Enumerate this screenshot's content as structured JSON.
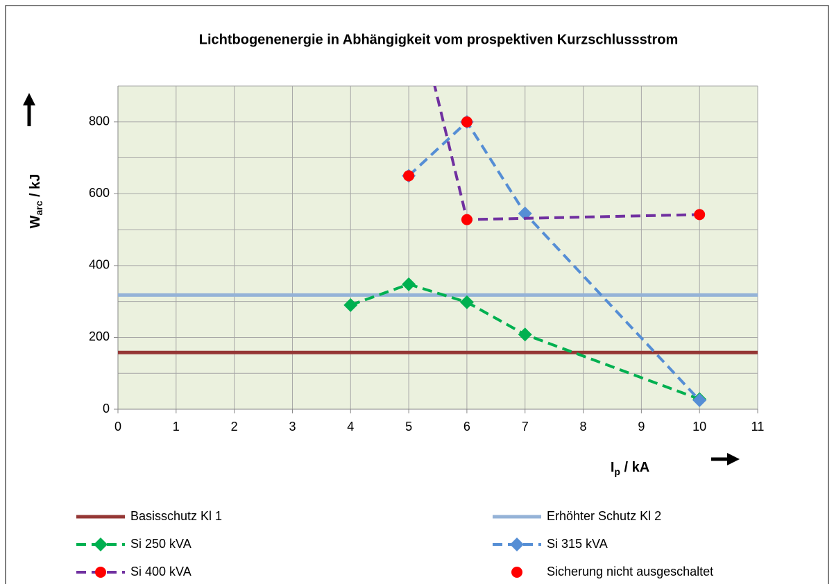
{
  "chart_data": {
    "type": "line",
    "title": "Lichtbogenenergie in Abhängigkeit vom prospektiven Kurzschlussstrom",
    "ylabel": {
      "main": "W",
      "sub": "arc",
      "unit": " / kJ"
    },
    "xlabel": {
      "main": "I",
      "sub": "p",
      "unit": " / kA"
    },
    "xlim": [
      0,
      11
    ],
    "xticks": [
      0,
      1,
      2,
      3,
      4,
      5,
      6,
      7,
      8,
      9,
      10,
      11
    ],
    "ylim": [
      0,
      900
    ],
    "yticks": [
      0,
      200,
      400,
      600,
      800
    ],
    "ygrid": [
      0,
      100,
      200,
      300,
      400,
      500,
      600,
      700,
      800,
      900
    ],
    "grid": true,
    "plot_background": "#ebf1de",
    "series": [
      {
        "name": "Basisschutz Kl 1",
        "color": "#953735",
        "dash": false,
        "marker": null,
        "x": [
          0,
          11
        ],
        "values": [
          158,
          158
        ]
      },
      {
        "name": "Erhöhter Schutz Kl 2",
        "color": "#95b3d7",
        "dash": false,
        "marker": null,
        "x": [
          0,
          11
        ],
        "values": [
          318,
          318
        ]
      },
      {
        "name": "Si 250 kVA",
        "color": "#00b050",
        "dash": true,
        "marker": "diamond",
        "marker_color": "#00b050",
        "x": [
          4,
          5,
          6,
          7,
          10
        ],
        "values": [
          290,
          348,
          298,
          208,
          28
        ]
      },
      {
        "name": "Si 315 kVA",
        "color": "#558ed5",
        "dash": true,
        "marker": "diamond",
        "marker_color": "#558ed5",
        "x": [
          5,
          6,
          7,
          10
        ],
        "values": [
          650,
          800,
          545,
          25
        ]
      },
      {
        "name": "Si 400 kVA",
        "color": "#7030a0",
        "dash": true,
        "marker": "circle",
        "marker_color": "#ff0000",
        "x": [
          5,
          6,
          10
        ],
        "values": [
          1200,
          528,
          542
        ]
      },
      {
        "name": "Sicherung nicht ausgeschaltet",
        "color": "#ff0000",
        "line": false,
        "marker": "circle",
        "marker_color": "#ff0000",
        "x": [
          5,
          6
        ],
        "values": [
          650,
          800
        ]
      }
    ]
  }
}
